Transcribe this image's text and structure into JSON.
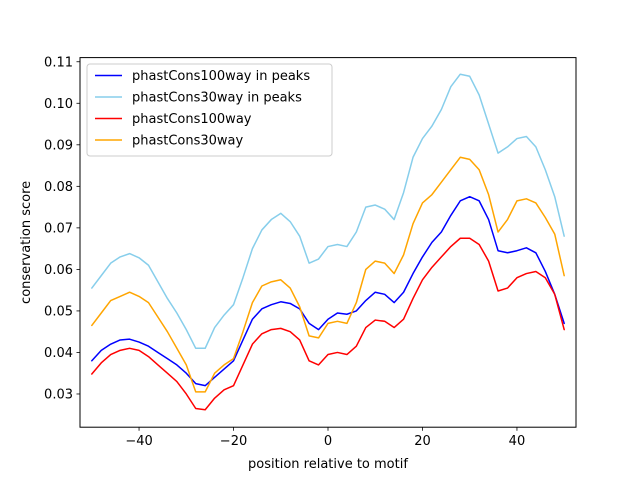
{
  "chart_data": {
    "type": "line",
    "xlabel": "position relative to motif",
    "ylabel": "conservation score",
    "xlim": [
      -52.5,
      52.5
    ],
    "ylim": [
      0.022,
      0.111
    ],
    "xticks": [
      -40,
      -20,
      0,
      20,
      40
    ],
    "xtick_labels": [
      "−40",
      "−20",
      "0",
      "20",
      "40"
    ],
    "yticks": [
      0.03,
      0.04,
      0.05,
      0.06,
      0.07,
      0.08,
      0.09,
      0.1,
      0.11
    ],
    "ytick_labels": [
      "0.03",
      "0.04",
      "0.05",
      "0.06",
      "0.07",
      "0.08",
      "0.09",
      "0.10",
      "0.11"
    ],
    "grid": false,
    "legend_position": "top-left",
    "series": [
      {
        "name": "phastCons100way in peaks",
        "color": "#0000ff",
        "points": [
          [
            -50,
            0.038
          ],
          [
            -48,
            0.0405
          ],
          [
            -46,
            0.042
          ],
          [
            -44,
            0.043
          ],
          [
            -42,
            0.0432
          ],
          [
            -40,
            0.0425
          ],
          [
            -38,
            0.0415
          ],
          [
            -36,
            0.04
          ],
          [
            -34,
            0.0385
          ],
          [
            -32,
            0.037
          ],
          [
            -30,
            0.035
          ],
          [
            -28,
            0.0325
          ],
          [
            -26,
            0.032
          ],
          [
            -24,
            0.034
          ],
          [
            -22,
            0.036
          ],
          [
            -20,
            0.038
          ],
          [
            -18,
            0.043
          ],
          [
            -16,
            0.048
          ],
          [
            -14,
            0.0505
          ],
          [
            -12,
            0.0515
          ],
          [
            -10,
            0.0522
          ],
          [
            -8,
            0.0518
          ],
          [
            -6,
            0.0505
          ],
          [
            -4,
            0.047
          ],
          [
            -2,
            0.0455
          ],
          [
            0,
            0.048
          ],
          [
            2,
            0.0495
          ],
          [
            4,
            0.0492
          ],
          [
            6,
            0.05
          ],
          [
            8,
            0.0525
          ],
          [
            10,
            0.0545
          ],
          [
            12,
            0.054
          ],
          [
            14,
            0.052
          ],
          [
            16,
            0.0545
          ],
          [
            18,
            0.059
          ],
          [
            20,
            0.063
          ],
          [
            22,
            0.0665
          ],
          [
            24,
            0.069
          ],
          [
            26,
            0.073
          ],
          [
            28,
            0.0765
          ],
          [
            30,
            0.0775
          ],
          [
            32,
            0.0765
          ],
          [
            34,
            0.072
          ],
          [
            36,
            0.0645
          ],
          [
            38,
            0.064
          ],
          [
            40,
            0.0645
          ],
          [
            42,
            0.0652
          ],
          [
            44,
            0.064
          ],
          [
            46,
            0.0595
          ],
          [
            48,
            0.054
          ],
          [
            50,
            0.047
          ]
        ]
      },
      {
        "name": "phastCons30way in peaks",
        "color": "#87ceeb",
        "points": [
          [
            -50,
            0.0555
          ],
          [
            -48,
            0.0585
          ],
          [
            -46,
            0.0615
          ],
          [
            -44,
            0.063
          ],
          [
            -42,
            0.0638
          ],
          [
            -40,
            0.0628
          ],
          [
            -38,
            0.061
          ],
          [
            -36,
            0.057
          ],
          [
            -34,
            0.053
          ],
          [
            -32,
            0.0495
          ],
          [
            -30,
            0.0455
          ],
          [
            -28,
            0.041
          ],
          [
            -26,
            0.041
          ],
          [
            -24,
            0.046
          ],
          [
            -22,
            0.049
          ],
          [
            -20,
            0.0515
          ],
          [
            -18,
            0.058
          ],
          [
            -16,
            0.065
          ],
          [
            -14,
            0.0695
          ],
          [
            -12,
            0.072
          ],
          [
            -10,
            0.0735
          ],
          [
            -8,
            0.0715
          ],
          [
            -6,
            0.068
          ],
          [
            -4,
            0.0615
          ],
          [
            -2,
            0.0625
          ],
          [
            0,
            0.0655
          ],
          [
            2,
            0.066
          ],
          [
            4,
            0.0655
          ],
          [
            6,
            0.069
          ],
          [
            8,
            0.075
          ],
          [
            10,
            0.0755
          ],
          [
            12,
            0.0745
          ],
          [
            14,
            0.072
          ],
          [
            16,
            0.0785
          ],
          [
            18,
            0.087
          ],
          [
            20,
            0.0915
          ],
          [
            22,
            0.0945
          ],
          [
            24,
            0.0985
          ],
          [
            26,
            0.104
          ],
          [
            28,
            0.107
          ],
          [
            30,
            0.1065
          ],
          [
            32,
            0.102
          ],
          [
            34,
            0.095
          ],
          [
            36,
            0.088
          ],
          [
            38,
            0.0895
          ],
          [
            40,
            0.0915
          ],
          [
            42,
            0.092
          ],
          [
            44,
            0.0895
          ],
          [
            46,
            0.084
          ],
          [
            48,
            0.0775
          ],
          [
            50,
            0.068
          ]
        ]
      },
      {
        "name": "phastCons100way",
        "color": "#ff0000",
        "points": [
          [
            -50,
            0.0348
          ],
          [
            -48,
            0.0375
          ],
          [
            -46,
            0.0395
          ],
          [
            -44,
            0.0405
          ],
          [
            -42,
            0.041
          ],
          [
            -40,
            0.0405
          ],
          [
            -38,
            0.039
          ],
          [
            -36,
            0.037
          ],
          [
            -34,
            0.035
          ],
          [
            -32,
            0.033
          ],
          [
            -30,
            0.03
          ],
          [
            -28,
            0.0265
          ],
          [
            -26,
            0.0262
          ],
          [
            -24,
            0.029
          ],
          [
            -22,
            0.031
          ],
          [
            -20,
            0.032
          ],
          [
            -18,
            0.037
          ],
          [
            -16,
            0.042
          ],
          [
            -14,
            0.0445
          ],
          [
            -12,
            0.0455
          ],
          [
            -10,
            0.0458
          ],
          [
            -8,
            0.045
          ],
          [
            -6,
            0.043
          ],
          [
            -4,
            0.038
          ],
          [
            -2,
            0.037
          ],
          [
            0,
            0.0395
          ],
          [
            2,
            0.04
          ],
          [
            4,
            0.0395
          ],
          [
            6,
            0.0415
          ],
          [
            8,
            0.046
          ],
          [
            10,
            0.0478
          ],
          [
            12,
            0.0475
          ],
          [
            14,
            0.046
          ],
          [
            16,
            0.048
          ],
          [
            18,
            0.053
          ],
          [
            20,
            0.0575
          ],
          [
            22,
            0.0605
          ],
          [
            24,
            0.063
          ],
          [
            26,
            0.0655
          ],
          [
            28,
            0.0675
          ],
          [
            30,
            0.0675
          ],
          [
            32,
            0.066
          ],
          [
            34,
            0.062
          ],
          [
            36,
            0.0548
          ],
          [
            38,
            0.0555
          ],
          [
            40,
            0.058
          ],
          [
            42,
            0.059
          ],
          [
            44,
            0.0595
          ],
          [
            46,
            0.058
          ],
          [
            48,
            0.054
          ],
          [
            50,
            0.0455
          ]
        ]
      },
      {
        "name": "phastCons30way",
        "color": "#ffa500",
        "points": [
          [
            -50,
            0.0465
          ],
          [
            -48,
            0.0495
          ],
          [
            -46,
            0.0525
          ],
          [
            -44,
            0.0535
          ],
          [
            -42,
            0.0545
          ],
          [
            -40,
            0.0535
          ],
          [
            -38,
            0.052
          ],
          [
            -36,
            0.0485
          ],
          [
            -34,
            0.045
          ],
          [
            -32,
            0.041
          ],
          [
            -30,
            0.037
          ],
          [
            -28,
            0.0305
          ],
          [
            -26,
            0.0305
          ],
          [
            -24,
            0.035
          ],
          [
            -22,
            0.037
          ],
          [
            -20,
            0.0385
          ],
          [
            -18,
            0.045
          ],
          [
            -16,
            0.052
          ],
          [
            -14,
            0.056
          ],
          [
            -12,
            0.057
          ],
          [
            -10,
            0.0575
          ],
          [
            -8,
            0.0555
          ],
          [
            -6,
            0.051
          ],
          [
            -4,
            0.044
          ],
          [
            -2,
            0.0435
          ],
          [
            0,
            0.047
          ],
          [
            2,
            0.0475
          ],
          [
            4,
            0.047
          ],
          [
            6,
            0.052
          ],
          [
            8,
            0.06
          ],
          [
            10,
            0.062
          ],
          [
            12,
            0.0615
          ],
          [
            14,
            0.059
          ],
          [
            16,
            0.0635
          ],
          [
            18,
            0.071
          ],
          [
            20,
            0.076
          ],
          [
            22,
            0.078
          ],
          [
            24,
            0.081
          ],
          [
            26,
            0.084
          ],
          [
            28,
            0.087
          ],
          [
            30,
            0.0865
          ],
          [
            32,
            0.084
          ],
          [
            34,
            0.078
          ],
          [
            36,
            0.069
          ],
          [
            38,
            0.072
          ],
          [
            40,
            0.0765
          ],
          [
            42,
            0.077
          ],
          [
            44,
            0.076
          ],
          [
            46,
            0.0725
          ],
          [
            48,
            0.0685
          ],
          [
            50,
            0.0585
          ]
        ]
      }
    ]
  }
}
